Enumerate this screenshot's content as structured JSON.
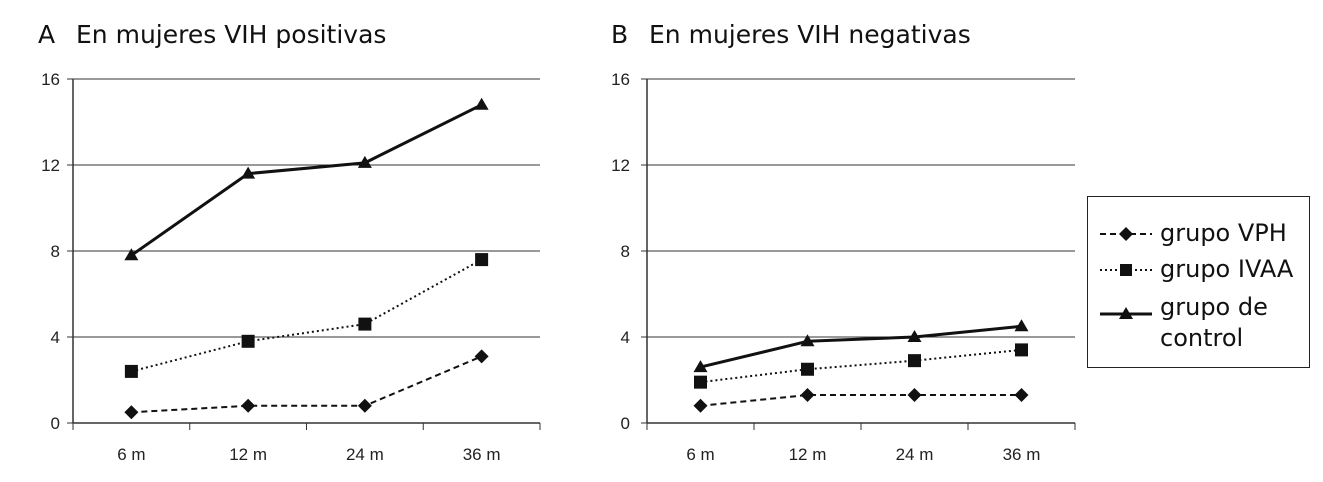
{
  "chart_data": [
    {
      "type": "line",
      "panel": "A",
      "title": "En mujeres VIH positivas",
      "categories": [
        "6 m",
        "12 m",
        "24 m",
        "36 m"
      ],
      "yticks": [
        0,
        4,
        8,
        12,
        16
      ],
      "ylim": [
        0,
        16
      ],
      "grid": "horizontal",
      "series": [
        {
          "name": "grupo VPH",
          "values": [
            0.5,
            0.8,
            0.8,
            3.1
          ]
        },
        {
          "name": "grupo IVAA",
          "values": [
            2.4,
            3.8,
            4.6,
            7.6
          ]
        },
        {
          "name": "grupo de control",
          "values": [
            7.8,
            11.6,
            12.1,
            14.8
          ]
        }
      ]
    },
    {
      "type": "line",
      "panel": "B",
      "title": "En mujeres VIH negativas",
      "categories": [
        "6 m",
        "12 m",
        "24 m",
        "36 m"
      ],
      "yticks": [
        0,
        4,
        8,
        12,
        16
      ],
      "ylim": [
        0,
        16
      ],
      "grid": "horizontal",
      "series": [
        {
          "name": "grupo VPH",
          "values": [
            0.8,
            1.3,
            1.3,
            1.3
          ]
        },
        {
          "name": "grupo IVAA",
          "values": [
            1.9,
            2.5,
            2.9,
            3.4
          ]
        },
        {
          "name": "grupo de control",
          "values": [
            2.6,
            3.8,
            4.0,
            4.5
          ]
        }
      ]
    }
  ],
  "legend": {
    "placement": "right",
    "items": [
      {
        "label": "grupo VPH",
        "style": "dashed",
        "marker": "diamond"
      },
      {
        "label": "grupo IVAA",
        "style": "dotted",
        "marker": "square"
      },
      {
        "label": "grupo de control",
        "style": "solid",
        "marker": "triangle"
      }
    ]
  }
}
